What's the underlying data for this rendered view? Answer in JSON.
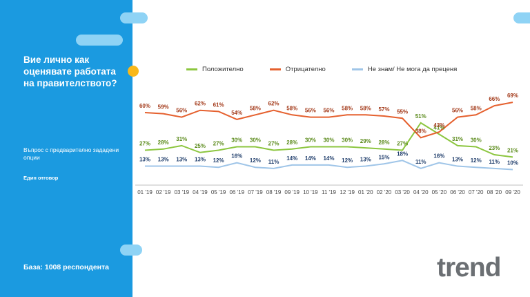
{
  "title": "Вие лично как оценявате работата на правителството?",
  "subtitle": "Въпрос с предварително зададени опции",
  "answer_note": "Един отговор",
  "base": "База: 1008 респондента",
  "logo_text": "trend",
  "colors": {
    "sidebar": "#1b9ae0",
    "positive": "#8cc63f",
    "negative": "#e5602e",
    "dontknow": "#9fc5e8",
    "accent_dot": "#f9b81a"
  },
  "chart_data": {
    "type": "line",
    "x": [
      "01 '19",
      "02 '19",
      "03 '19",
      "04 '19",
      "05 '19",
      "06 '19",
      "07 '19",
      "08 '19",
      "09 '19",
      "10 '19",
      "11 '19",
      "12 '19",
      "01 '20",
      "02 '20",
      "03 '20",
      "04 '20",
      "05 '20",
      "06 '20",
      "07 '20",
      "08 '20",
      "09 '20"
    ],
    "series": [
      {
        "name": "Положително",
        "color": "#8cc63f",
        "label_color": "#5a8a1a",
        "values": [
          27,
          28,
          31,
          25,
          27,
          30,
          30,
          27,
          28,
          30,
          30,
          30,
          29,
          28,
          27,
          51,
          41,
          31,
          30,
          23,
          21
        ]
      },
      {
        "name": "Отрицателно",
        "color": "#e5602e",
        "label_color": "#a33a1a",
        "values": [
          60,
          59,
          56,
          62,
          61,
          54,
          58,
          62,
          58,
          56,
          56,
          58,
          58,
          57,
          55,
          38,
          43,
          56,
          58,
          66,
          69
        ]
      },
      {
        "name": "Не знам/ Не мога да преценя",
        "color": "#9fc5e8",
        "label_color": "#1f3d6b",
        "values": [
          13,
          13,
          13,
          13,
          12,
          16,
          12,
          11,
          14,
          14,
          14,
          12,
          13,
          15,
          18,
          11,
          16,
          13,
          12,
          11,
          10
        ]
      }
    ],
    "label_suffix": "%",
    "ylim": [
      0,
      80
    ],
    "grid": false,
    "legend": "top"
  }
}
